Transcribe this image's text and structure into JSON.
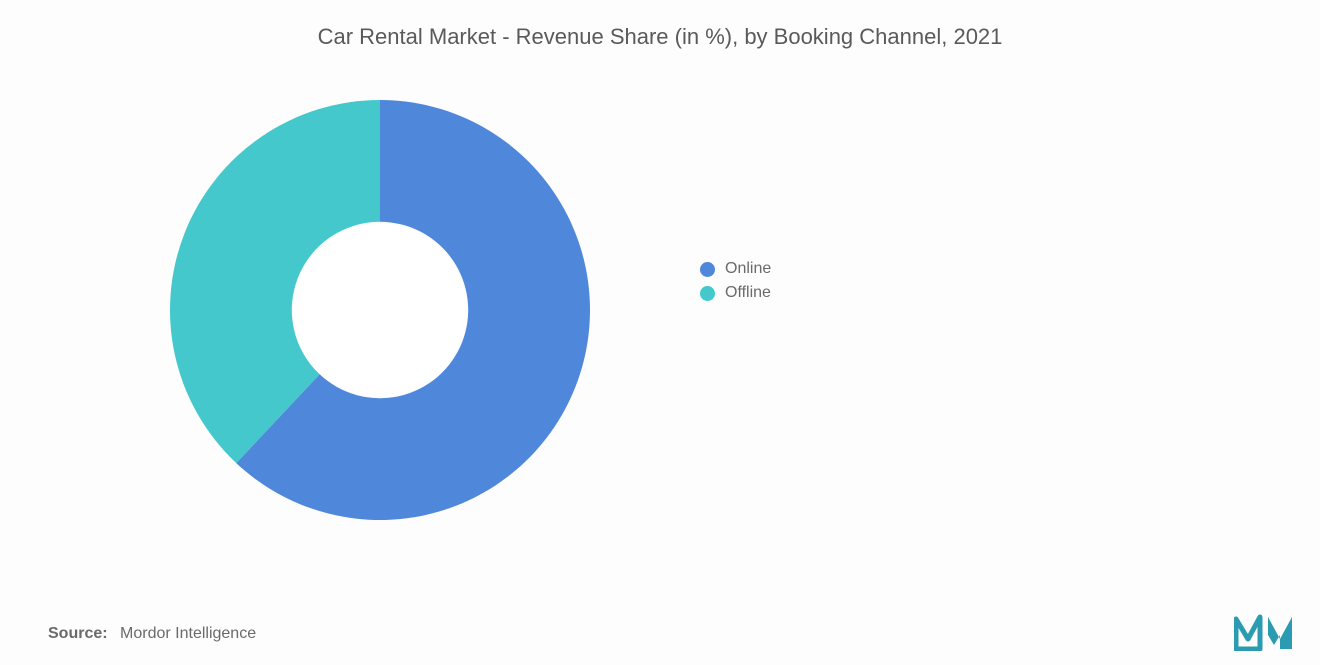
{
  "title": {
    "text": "Car Rental Market - Revenue Share (in %), by Booking Channel, 2021",
    "fontsize": 22,
    "color": "#5a5a5a"
  },
  "chart": {
    "type": "donut",
    "slices": [
      {
        "label": "Online",
        "value": 62,
        "color": "#4f87da"
      },
      {
        "label": "Offline",
        "value": 38,
        "color": "#44c8cc"
      }
    ],
    "inner_radius_pct": 42,
    "outer_radius_pct": 100,
    "start_angle_deg": 90,
    "direction": "clockwise",
    "background_color": "#fdfdfd",
    "hole_color": "#ffffff"
  },
  "legend": {
    "items": [
      {
        "label": "Online",
        "color": "#4f87da"
      },
      {
        "label": "Offline",
        "color": "#44c8cc"
      }
    ],
    "fontsize": 16,
    "text_color": "#6a6a6a"
  },
  "source": {
    "label": "Source:",
    "name": "Mordor Intelligence",
    "fontsize": 16
  },
  "logo": {
    "stroke_color": "#2a9bb0",
    "fill_color": "#2a9bb0"
  }
}
